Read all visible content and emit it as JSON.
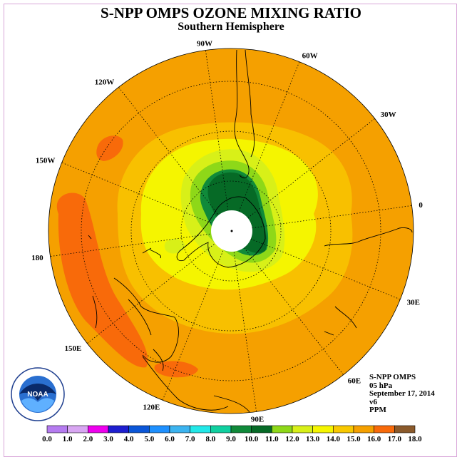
{
  "title": "S-NPP OMPS OZONE MIXING RATIO",
  "subtitle": "Southern Hemisphere",
  "info": {
    "instrument": "S-NPP OMPS",
    "level": "05 hPa",
    "date": "September 17, 2014",
    "version": "v6",
    "units": "PPM"
  },
  "longitude_labels": [
    "90W",
    "60W",
    "30W",
    "0",
    "30E",
    "60E",
    "90E",
    "120E",
    "150E",
    "180",
    "150W",
    "120W"
  ],
  "colorbar": {
    "ticks": [
      "0.0",
      "1.0",
      "2.0",
      "3.0",
      "4.0",
      "5.0",
      "6.0",
      "7.0",
      "8.0",
      "9.0",
      "10.0",
      "11.0",
      "12.0",
      "13.0",
      "14.0",
      "15.0",
      "16.0",
      "17.0",
      "18.0"
    ],
    "colors": [
      "#b57bf0",
      "#d8a6f2",
      "#ee00ee",
      "#1e1ecf",
      "#0a56d8",
      "#1e90ff",
      "#3cb4f0",
      "#22e8e8",
      "#10d0a0",
      "#108a3a",
      "#066a26",
      "#8ed818",
      "#d8f018",
      "#f5f500",
      "#f8c800",
      "#f5a000",
      "#f86a0a",
      "#f50000",
      "#8b5a2b"
    ]
  },
  "logo": {
    "text": "NOAA",
    "ring_text": "NATIONAL OCEANIC AND ATMOSPHERIC ADMINISTRATION · U.S. DEPARTMENT OF COMMERCE"
  },
  "colors": {
    "background": "#ffffff",
    "frame": "#d9a6d9",
    "ocean_base": "#f5a000"
  }
}
